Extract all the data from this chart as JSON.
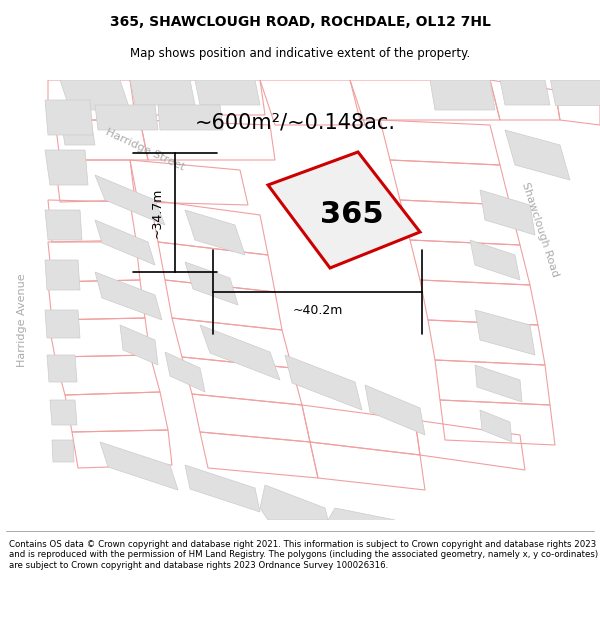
{
  "title_line1": "365, SHAWCLOUGH ROAD, ROCHDALE, OL12 7HL",
  "title_line2": "Map shows position and indicative extent of the property.",
  "area_label": "~600m²/~0.148ac.",
  "property_number": "365",
  "width_label": "~40.2m",
  "height_label": "~34.7m",
  "footer_text": "Contains OS data © Crown copyright and database right 2021. This information is subject to Crown copyright and database rights 2023 and is reproduced with the permission of HM Land Registry. The polygons (including the associated geometry, namely x, y co-ordinates) are subject to Crown copyright and database rights 2023 Ordnance Survey 100026316.",
  "map_bg": "#f7f7f7",
  "building_color": "#e0e0e0",
  "building_edge": "#cccccc",
  "plot_edge": "#f0a0a0",
  "plot_fill": "none",
  "prop_edge": "#cc0000",
  "prop_fill": "#f0f0f0",
  "road_label_color": "#aaaaaa",
  "street_label_shawclough": "Shawclough Road",
  "street_label_harridge_st": "Harridge Street",
  "street_label_harridge_av": "Harridge Avenue",
  "title_fontsize": 10,
  "subtitle_fontsize": 8.5,
  "area_fontsize": 15,
  "number_fontsize": 22,
  "measure_fontsize": 9,
  "street_fontsize": 8
}
